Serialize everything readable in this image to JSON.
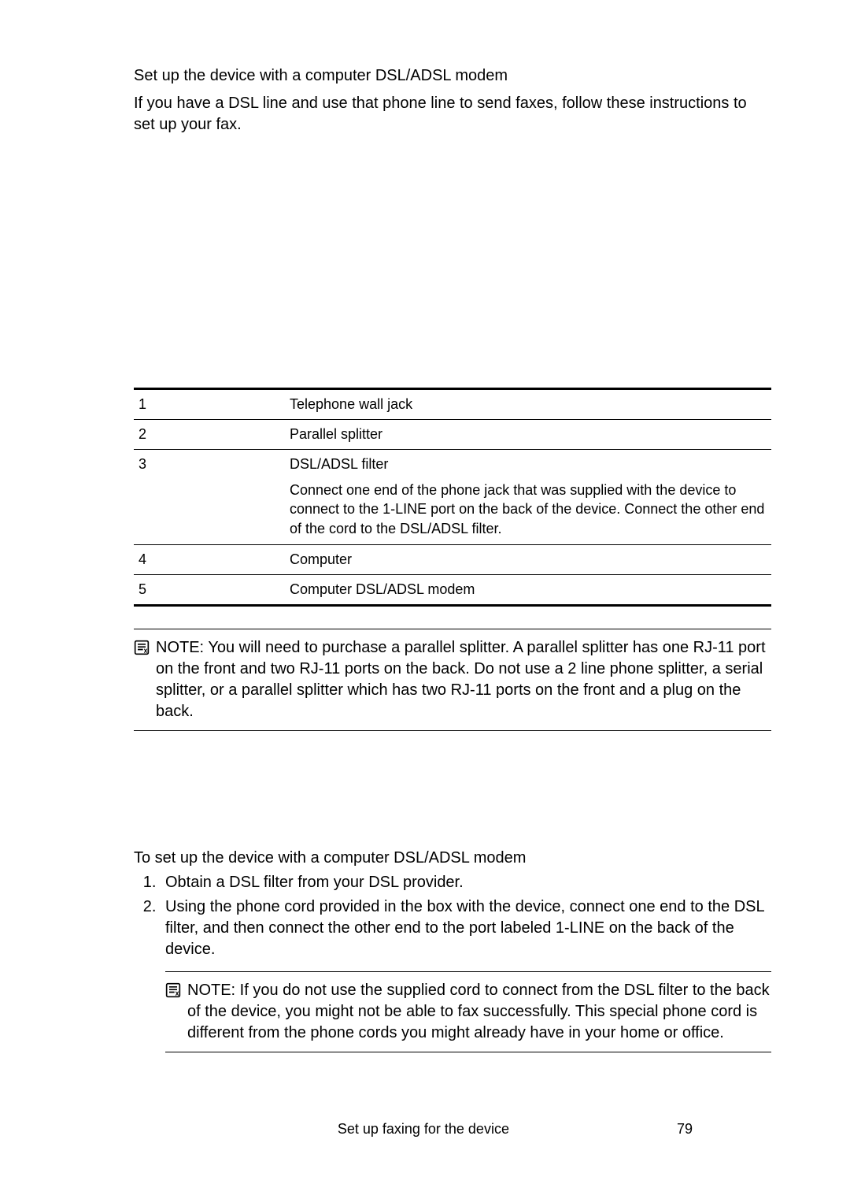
{
  "intro": {
    "title": "Set up the device with a computer DSL/ADSL modem",
    "body": "If you have a DSL line and use that phone line to send faxes, follow these instructions to set up your fax."
  },
  "table": {
    "rows": [
      {
        "num": "1",
        "desc": "Telephone wall jack"
      },
      {
        "num": "2",
        "desc": "Parallel splitter"
      },
      {
        "num": "3",
        "desc": "DSL/ADSL filter",
        "desc2": "Connect one end of the phone jack that was supplied with the device to connect to the 1-LINE port on the back of the device. Connect the other end of the cord to the DSL/ADSL filter."
      },
      {
        "num": "4",
        "desc": "Computer"
      },
      {
        "num": "5",
        "desc": "Computer DSL/ADSL modem"
      }
    ]
  },
  "note1": {
    "label": "NOTE:",
    "text": "  You will need to purchase a parallel splitter. A parallel splitter has one RJ-11 port on the front and two RJ-11 ports on the back. Do not use a 2 line phone splitter, a serial splitter, or a parallel splitter which has two RJ-11 ports on the front and a plug on the back."
  },
  "steps": {
    "title": "To set up the device with a computer DSL/ADSL modem",
    "items": [
      "Obtain a DSL filter from your DSL provider.",
      "Using the phone cord provided in the box with the device, connect one end to the DSL filter, and then connect the other end to the port labeled 1-LINE on the back of the device."
    ]
  },
  "note2": {
    "label": "NOTE:",
    "text": "  If you do not use the supplied cord to connect from the DSL filter to the back of the device, you might not be able to fax successfully. This special phone cord is different from the phone cords you might already have in your home or office."
  },
  "footer": {
    "title": "Set up faxing for the device",
    "page": "79"
  },
  "icon_name": "note-icon"
}
